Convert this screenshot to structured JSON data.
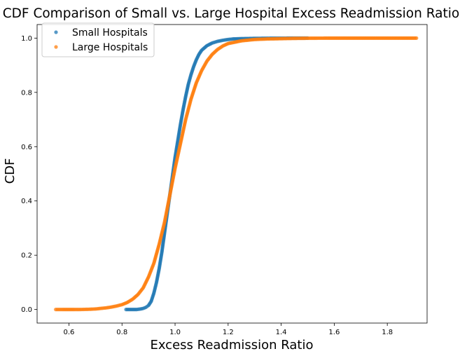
{
  "chart_data": {
    "type": "scatter",
    "title": "CDF Comparison of Small vs. Large Hospital Excess Readmission Ratio",
    "xlabel": "Excess Readmission Ratio",
    "ylabel": "CDF",
    "xlim": [
      0.48,
      1.95
    ],
    "ylim": [
      -0.05,
      1.05
    ],
    "x_ticks": [
      "0.6",
      "0.8",
      "1.0",
      "1.2",
      "1.4",
      "1.6",
      "1.8"
    ],
    "y_ticks": [
      "0.0",
      "0.2",
      "0.4",
      "0.6",
      "0.8",
      "1.0"
    ],
    "grid": false,
    "legend_position": "top-left",
    "series": [
      {
        "name": "Small Hospitals",
        "color": "#1f77b4",
        "points": [
          [
            0.815,
            0.0
          ],
          [
            0.855,
            0.0
          ],
          [
            0.87,
            0.002
          ],
          [
            0.88,
            0.004
          ],
          [
            0.89,
            0.008
          ],
          [
            0.9,
            0.015
          ],
          [
            0.91,
            0.03
          ],
          [
            0.92,
            0.06
          ],
          [
            0.93,
            0.1
          ],
          [
            0.94,
            0.15
          ],
          [
            0.95,
            0.21
          ],
          [
            0.96,
            0.28
          ],
          [
            0.97,
            0.35
          ],
          [
            0.98,
            0.42
          ],
          [
            0.99,
            0.49
          ],
          [
            1.0,
            0.56
          ],
          [
            1.01,
            0.62
          ],
          [
            1.02,
            0.68
          ],
          [
            1.03,
            0.735
          ],
          [
            1.04,
            0.785
          ],
          [
            1.05,
            0.83
          ],
          [
            1.06,
            0.865
          ],
          [
            1.07,
            0.895
          ],
          [
            1.08,
            0.92
          ],
          [
            1.09,
            0.94
          ],
          [
            1.1,
            0.955
          ],
          [
            1.12,
            0.972
          ],
          [
            1.14,
            0.982
          ],
          [
            1.16,
            0.988
          ],
          [
            1.18,
            0.992
          ],
          [
            1.2,
            0.995
          ],
          [
            1.22,
            0.997
          ],
          [
            1.25,
            0.998
          ],
          [
            1.3,
            0.999
          ],
          [
            1.35,
            0.9995
          ],
          [
            1.4,
            0.9998
          ],
          [
            1.45,
            1.0
          ],
          [
            1.5,
            1.0
          ]
        ]
      },
      {
        "name": "Large Hospitals",
        "color": "#ff7f0e",
        "points": [
          [
            0.55,
            0.0
          ],
          [
            0.575,
            0.0
          ],
          [
            0.62,
            0.0
          ],
          [
            0.64,
            0.0
          ],
          [
            0.66,
            0.0005
          ],
          [
            0.68,
            0.001
          ],
          [
            0.7,
            0.002
          ],
          [
            0.72,
            0.004
          ],
          [
            0.74,
            0.006
          ],
          [
            0.76,
            0.009
          ],
          [
            0.78,
            0.013
          ],
          [
            0.8,
            0.018
          ],
          [
            0.82,
            0.026
          ],
          [
            0.84,
            0.038
          ],
          [
            0.86,
            0.055
          ],
          [
            0.88,
            0.08
          ],
          [
            0.9,
            0.12
          ],
          [
            0.92,
            0.17
          ],
          [
            0.94,
            0.24
          ],
          [
            0.96,
            0.32
          ],
          [
            0.98,
            0.42
          ],
          [
            1.0,
            0.52
          ],
          [
            1.02,
            0.61
          ],
          [
            1.04,
            0.7
          ],
          [
            1.06,
            0.775
          ],
          [
            1.08,
            0.835
          ],
          [
            1.1,
            0.88
          ],
          [
            1.12,
            0.915
          ],
          [
            1.14,
            0.94
          ],
          [
            1.16,
            0.958
          ],
          [
            1.18,
            0.971
          ],
          [
            1.2,
            0.98
          ],
          [
            1.25,
            0.99
          ],
          [
            1.3,
            0.995
          ],
          [
            1.35,
            0.997
          ],
          [
            1.4,
            0.998
          ],
          [
            1.45,
            0.999
          ],
          [
            1.5,
            0.9995
          ],
          [
            1.58,
            1.0
          ],
          [
            1.75,
            1.0
          ],
          [
            1.91,
            1.0
          ]
        ]
      }
    ]
  }
}
